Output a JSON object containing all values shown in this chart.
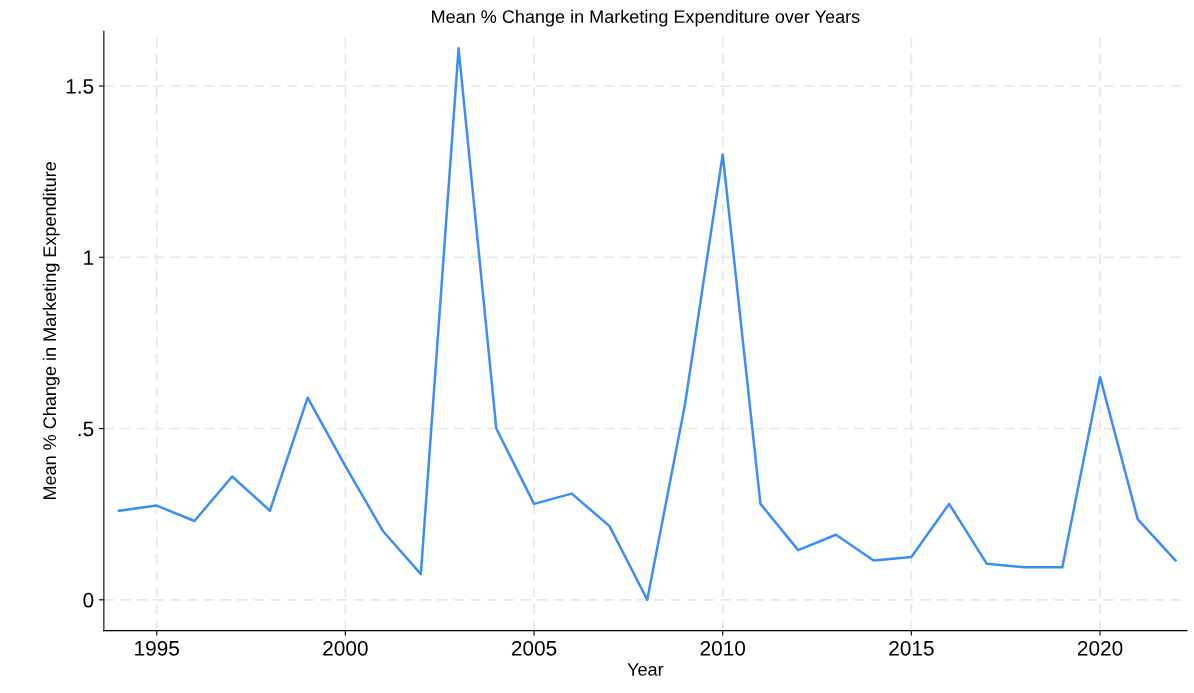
{
  "chart_data": {
    "type": "line",
    "title": "Mean % Change in Marketing Expenditure over Years",
    "xlabel": "Year",
    "ylabel": "Mean % Change in Marketing Expenditure",
    "x": [
      1994,
      1995,
      1996,
      1997,
      1998,
      1999,
      2000,
      2001,
      2002,
      2003,
      2004,
      2005,
      2006,
      2007,
      2008,
      2009,
      2010,
      2011,
      2012,
      2013,
      2014,
      2015,
      2016,
      2017,
      2018,
      2019,
      2020,
      2021,
      2022
    ],
    "series": [
      {
        "color": "#3d8ef0",
        "values": [
          0.26,
          0.275,
          0.23,
          0.36,
          0.26,
          0.59,
          0.39,
          0.2,
          0.075,
          1.61,
          0.5,
          0.28,
          0.31,
          0.215,
          0.0,
          0.57,
          1.3,
          0.28,
          0.145,
          0.19,
          0.115,
          0.125,
          0.28,
          0.105,
          0.095,
          0.095,
          0.65,
          0.235,
          0.115
        ]
      }
    ],
    "xlim": [
      1993.6,
      2022.3
    ],
    "xticks": [
      1995,
      2000,
      2005,
      2010,
      2015,
      2020
    ],
    "ylim": [
      -0.09,
      1.66
    ],
    "yticks": [
      0,
      {
        "value": 0.5,
        "label": ".5"
      },
      1,
      1.5
    ],
    "grid": true,
    "marker": "none",
    "line_style": "solid"
  }
}
